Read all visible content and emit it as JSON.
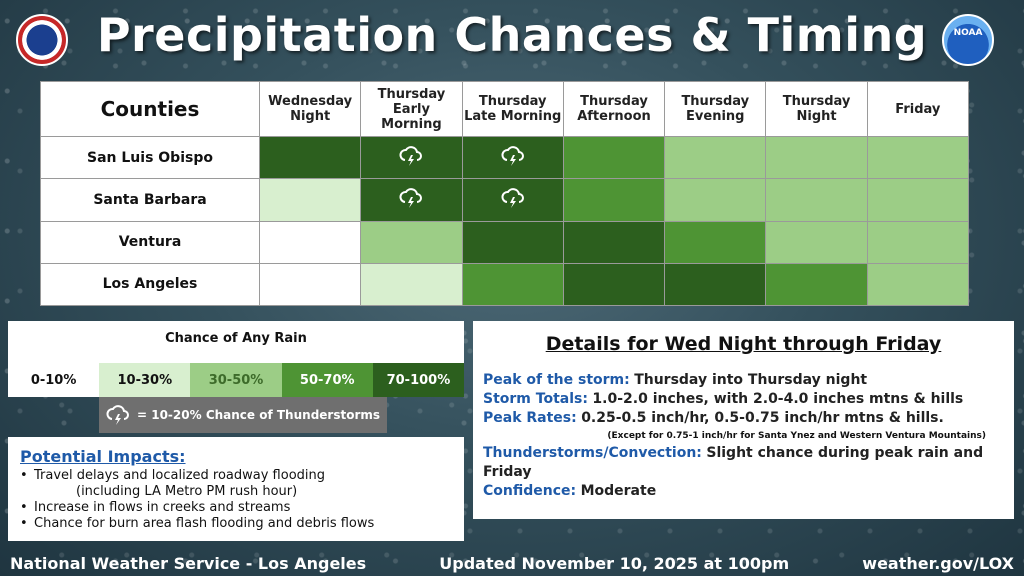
{
  "header": {
    "title": "Precipitation Chances & Timing"
  },
  "grid": {
    "corner_label": "Counties",
    "columns": [
      "Wednesday\nNight",
      "Thursday\nEarly Morning",
      "Thursday\nLate Morning",
      "Thursday\nAfternoon",
      "Thursday\nEvening",
      "Thursday\nNight",
      "Friday"
    ],
    "rows": [
      {
        "county": "San Luis Obispo",
        "levels": [
          4,
          4,
          4,
          3,
          2,
          2,
          2
        ],
        "thunder": [
          false,
          true,
          true,
          false,
          false,
          false,
          false
        ]
      },
      {
        "county": "Santa Barbara",
        "levels": [
          1,
          4,
          4,
          3,
          2,
          2,
          2
        ],
        "thunder": [
          false,
          true,
          true,
          false,
          false,
          false,
          false
        ]
      },
      {
        "county": "Ventura",
        "levels": [
          0,
          2,
          4,
          4,
          3,
          2,
          2
        ],
        "thunder": [
          false,
          false,
          false,
          false,
          false,
          false,
          false
        ]
      },
      {
        "county": "Los Angeles",
        "levels": [
          0,
          1,
          3,
          4,
          4,
          3,
          2
        ],
        "thunder": [
          false,
          false,
          false,
          false,
          false,
          false,
          false
        ]
      }
    ]
  },
  "legend": {
    "title": "Chance of Any Rain",
    "items": [
      {
        "label": "0-10%",
        "color": "#ffffff",
        "text_color": "#111111"
      },
      {
        "label": "10-30%",
        "color": "#d8efcf",
        "text_color": "#111111"
      },
      {
        "label": "30-50%",
        "color": "#9ccd86",
        "text_color": "#3d6b2a"
      },
      {
        "label": "50-70%",
        "color": "#4e9434",
        "text_color": "#ffffff"
      },
      {
        "label": "70-100%",
        "color": "#2c5f1e",
        "text_color": "#ffffff"
      }
    ],
    "thunder_label": "= 10-20% Chance of Thunderstorms"
  },
  "impacts": {
    "title": "Potential Impacts:",
    "items": [
      {
        "text": "Travel delays and localized roadway flooding",
        "sub": false
      },
      {
        "text": "(including LA Metro PM rush hour)",
        "sub": true
      },
      {
        "text": "Increase in flows in creeks and streams",
        "sub": false
      },
      {
        "text": "Chance for burn area flash flooding and debris flows",
        "sub": false
      }
    ]
  },
  "details": {
    "title": "Details for Wed Night through Friday",
    "peak_key": "Peak of the storm:",
    "peak_val": "Thursday into Thursday night",
    "totals_key": "Storm Totals:",
    "totals_val": "1.0-2.0 inches, with 2.0-4.0 inches mtns & hills",
    "rates_key": "Peak Rates:",
    "rates_val": "0.25-0.5 inch/hr, 0.5-0.75 inch/hr mtns & hills.",
    "rates_note": "(Except for 0.75-1 inch/hr for Santa Ynez and Western Ventura Mountains)",
    "thunder_key": "Thunderstorms/Convection:",
    "thunder_val": "Slight chance during peak rain and Friday",
    "confidence_key": "Confidence:",
    "confidence_val": "Moderate"
  },
  "footer": {
    "left": "National Weather Service - Los Angeles",
    "center": "Updated November 10, 2025 at 100pm",
    "right": "weather.gov/LOX"
  },
  "logos": {
    "left": "nws-logo-icon",
    "right": "NOAA"
  }
}
